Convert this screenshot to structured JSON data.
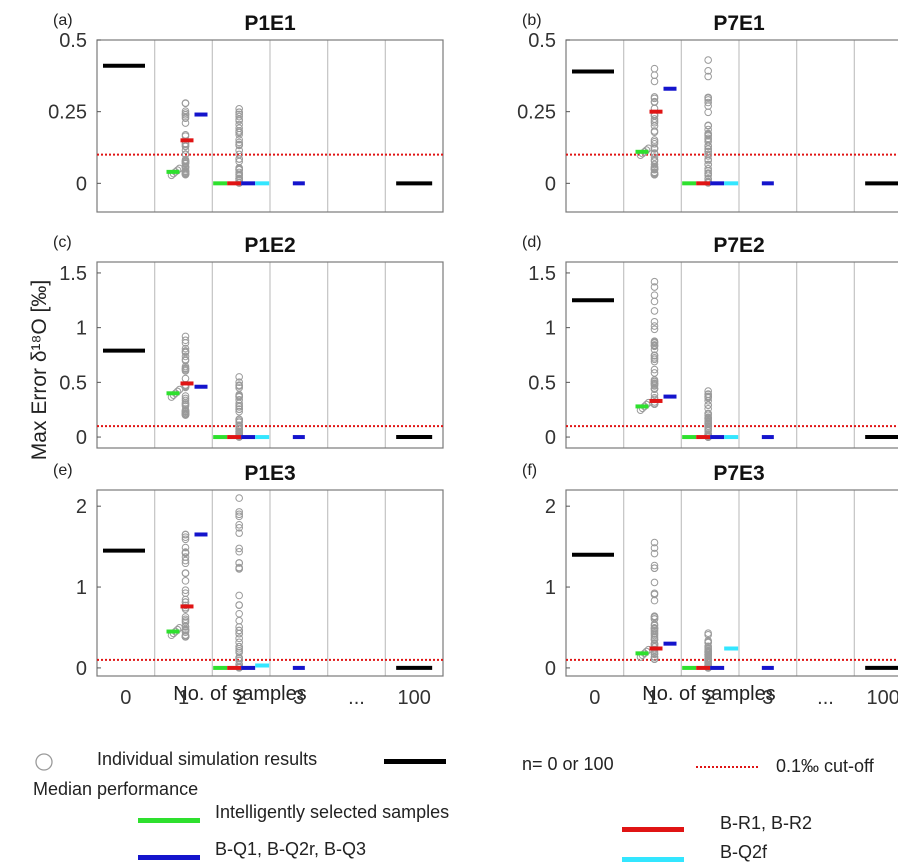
{
  "figure": {
    "ylabel": "Max Error δ¹⁸O  [‰]",
    "xlabel": "No. of samples",
    "x_ticks": [
      "0",
      "1",
      "2",
      "3",
      "...",
      "100"
    ]
  },
  "colors": {
    "green": "#2ee02e",
    "red": "#e01414",
    "blue": "#1414cc",
    "cyan": "#33e6ff",
    "black": "#000000",
    "cutoff": "#e01414",
    "points": "#9a9a9a"
  },
  "legend": {
    "individual": "Individual simulation results",
    "median_title": "Median performance",
    "intelligent": "Intelligently selected samples",
    "bq": "B-Q1, B-Q2r, B-Q3",
    "n0_100": "n= 0 or 100",
    "cutoff": "0.1‰ cut-off",
    "br": "B-R1, B-R2",
    "bq2f": "B-Q2f"
  },
  "chart_data": [
    {
      "panel": "(a)",
      "title": "P1E1",
      "type": "scatter",
      "ylim": [
        -0.1,
        0.5
      ],
      "yticks": [
        "0",
        "0.25",
        "0.5"
      ],
      "ytick_values": [
        0,
        0.25,
        0.5
      ],
      "cutoff": 0.1,
      "medians": {
        "n0": 0.41,
        "green": 0.04,
        "red_n1": 0.15,
        "blue_n1": 0.24,
        "n2_all": 0,
        "blue_n3": 0,
        "n100": 0
      },
      "points_n1": {
        "min": 0.03,
        "max": 0.28
      },
      "points_n2": {
        "min": 0.0,
        "max": 0.26
      }
    },
    {
      "panel": "(b)",
      "title": "P7E1",
      "type": "scatter",
      "ylim": [
        -0.1,
        0.5
      ],
      "yticks": [
        "0",
        "0.25",
        "0.5"
      ],
      "ytick_values": [
        0,
        0.25,
        0.5
      ],
      "cutoff": 0.1,
      "medians": {
        "n0": 0.39,
        "green": 0.11,
        "red_n1": 0.25,
        "blue_n1": 0.33,
        "n2_all": 0,
        "blue_n3": 0,
        "n100": 0
      },
      "points_n1": {
        "min": 0.03,
        "max": 0.4
      },
      "points_n2": {
        "min": 0.0,
        "max": 0.43
      }
    },
    {
      "panel": "(c)",
      "title": "P1E2",
      "type": "scatter",
      "ylim": [
        -0.1,
        1.6
      ],
      "yticks": [
        "0",
        "0.5",
        "1",
        "1.5"
      ],
      "ytick_values": [
        0,
        0.5,
        1,
        1.5
      ],
      "cutoff": 0.1,
      "medians": {
        "n0": 0.79,
        "green": 0.4,
        "red_n1": 0.49,
        "blue_n1": 0.46,
        "n2_all": 0,
        "blue_n3": 0,
        "n100": 0
      },
      "points_n1": {
        "min": 0.2,
        "max": 0.92
      },
      "points_n2": {
        "min": 0.0,
        "max": 0.55
      }
    },
    {
      "panel": "(d)",
      "title": "P7E2",
      "type": "scatter",
      "ylim": [
        -0.1,
        1.6
      ],
      "yticks": [
        "0",
        "0.5",
        "1",
        "1.5"
      ],
      "ytick_values": [
        0,
        0.5,
        1,
        1.5
      ],
      "cutoff": 0.1,
      "medians": {
        "n0": 1.25,
        "green": 0.28,
        "red_n1": 0.33,
        "blue_n1": 0.37,
        "n2_all": 0,
        "blue_n3": 0,
        "n100": 0
      },
      "points_n1": {
        "min": 0.3,
        "max": 1.42
      },
      "points_n2": {
        "min": 0.0,
        "max": 0.42
      }
    },
    {
      "panel": "(e)",
      "title": "P1E3",
      "type": "scatter",
      "ylim": [
        -0.1,
        2.2
      ],
      "yticks": [
        "0",
        "1",
        "2"
      ],
      "ytick_values": [
        0,
        1,
        2
      ],
      "cutoff": 0.1,
      "medians": {
        "n0": 1.45,
        "green": 0.45,
        "red_n1": 0.76,
        "blue_n1": 1.65,
        "n2_all": 0,
        "cyan_n2": 0.03,
        "blue_n3": 0,
        "n100": 0
      },
      "points_n1": {
        "min": 0.38,
        "max": 1.65
      },
      "points_n2": {
        "min": 0.0,
        "max": 2.1
      }
    },
    {
      "panel": "(f)",
      "title": "P7E3",
      "type": "scatter",
      "ylim": [
        -0.1,
        2.2
      ],
      "yticks": [
        "0",
        "1",
        "2"
      ],
      "ytick_values": [
        0,
        1,
        2
      ],
      "cutoff": 0.1,
      "medians": {
        "n0": 1.4,
        "green": 0.18,
        "red_n1": 0.24,
        "blue_n1": 0.3,
        "n2_all": 0,
        "cyan_n2": 0.24,
        "blue_n3": 0,
        "n100": 0
      },
      "points_n1": {
        "min": 0.1,
        "max": 1.55
      },
      "points_n2": {
        "min": 0.0,
        "max": 0.43
      }
    }
  ]
}
